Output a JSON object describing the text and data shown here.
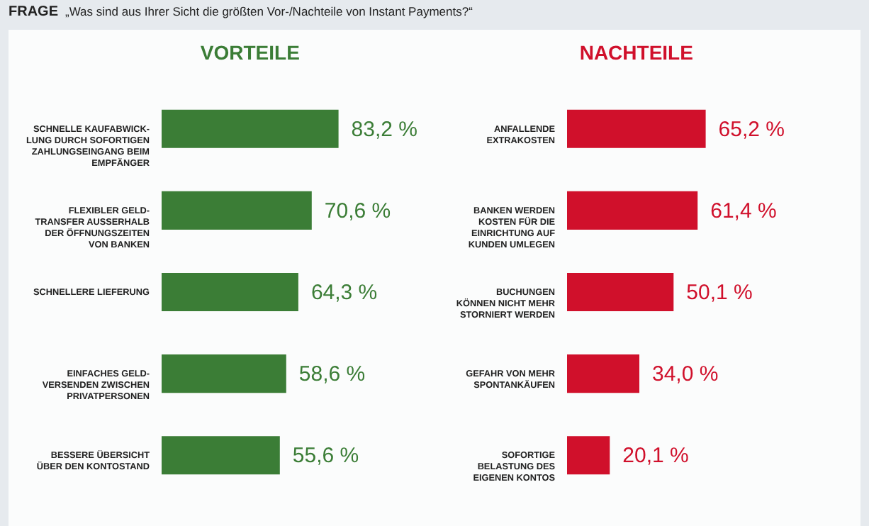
{
  "chart_data": [
    {
      "type": "bar",
      "orientation": "horizontal",
      "title": "VORTEILE",
      "annotations": [
        "FRAGE",
        "„Was sind aus Ihrer Sicht die größten Vor-/Nachteile von Instant Payments?“"
      ],
      "categories": [
        "SCHNELLE KAUFABWICK-\nLUNG DURCH SOFORTIGEN\nZAHLUNGSEINGANG BEIM\nEMPFÄNGER",
        "FLEXIBLER GELD-\nTRANSFER AUSSERHALB\nDER ÖFFNUNGSZEITEN\nVON BANKEN",
        "SCHNELLERE LIEFERUNG",
        "EINFACHES GELD-\nVERSENDEN ZWISCHEN\nPRIVATPERSONEN",
        "BESSERE ÜBERSICHT\nÜBER DEN KONTOSTAND"
      ],
      "values": [
        83.2,
        70.6,
        64.3,
        58.6,
        55.6
      ],
      "value_labels": [
        "83,2 %",
        "70,6 %",
        "64,3 %",
        "58,6 %",
        "55,6 %"
      ],
      "color": "#3b7d36"
    },
    {
      "type": "bar",
      "orientation": "horizontal",
      "title": "NACHTEILE",
      "categories": [
        "ANFALLENDE\nEXTRAKOSTEN",
        "BANKEN WERDEN\nKOSTEN FÜR DIE\nEINRICHTUNG AUF\nKUNDEN UMLEGEN",
        "BUCHUNGEN\nKÖNNEN NICHT MEHR\nSTORNIERT WERDEN",
        "GEFAHR VON MEHR\nSPONTANKÄUFEN",
        "SOFORTIGE\nBELASTUNG DES\nEIGENEN KONTOS"
      ],
      "values": [
        65.2,
        61.4,
        50.1,
        34.0,
        20.1
      ],
      "value_labels": [
        "65,2 %",
        "61,4 %",
        "50,1 %",
        "34,0 %",
        "20,1 %"
      ],
      "color": "#d0102b"
    }
  ]
}
